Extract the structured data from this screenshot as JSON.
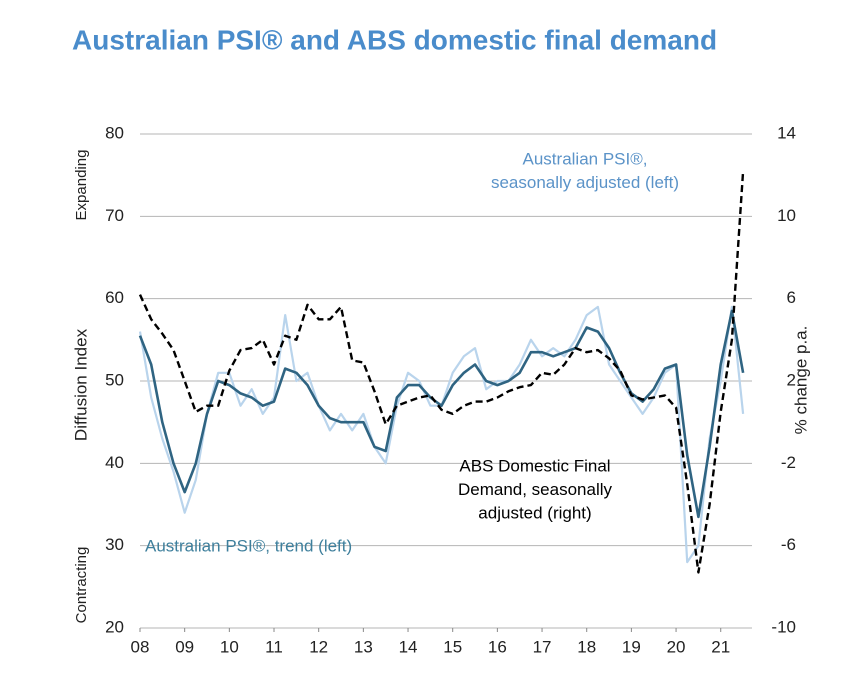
{
  "chart_data": {
    "type": "line",
    "title": "Australian PSI® and ABS domestic final demand",
    "ylabel": "Diffusion Index",
    "y2label": "% change p.a.",
    "ytop_label": "Expanding",
    "ybottom_label": "Contracting",
    "xlim": [
      2008,
      2021.7
    ],
    "xticks": [
      {
        "value": 2008,
        "label": "08"
      },
      {
        "value": 2009,
        "label": "09"
      },
      {
        "value": 2010,
        "label": "10"
      },
      {
        "value": 2011,
        "label": "11"
      },
      {
        "value": 2012,
        "label": "12"
      },
      {
        "value": 2013,
        "label": "13"
      },
      {
        "value": 2014,
        "label": "14"
      },
      {
        "value": 2015,
        "label": "15"
      },
      {
        "value": 2016,
        "label": "16"
      },
      {
        "value": 2017,
        "label": "17"
      },
      {
        "value": 2018,
        "label": "18"
      },
      {
        "value": 2019,
        "label": "19"
      },
      {
        "value": 2020,
        "label": "20"
      },
      {
        "value": 2021,
        "label": "21"
      }
    ],
    "ylim": [
      20,
      80
    ],
    "yticks": [
      20,
      30,
      40,
      50,
      60,
      70,
      80
    ],
    "y2lim": [
      -10,
      14
    ],
    "y2ticks": [
      -10,
      -6,
      -2,
      2,
      6,
      10,
      14
    ],
    "grid": true,
    "x": [
      2008,
      2008.25,
      2008.5,
      2008.75,
      2009,
      2009.25,
      2009.5,
      2009.75,
      2010,
      2010.25,
      2010.5,
      2010.75,
      2011,
      2011.25,
      2011.5,
      2011.75,
      2012,
      2012.25,
      2012.5,
      2012.75,
      2013,
      2013.25,
      2013.5,
      2013.75,
      2014,
      2014.25,
      2014.5,
      2014.75,
      2015,
      2015.25,
      2015.5,
      2015.75,
      2016,
      2016.25,
      2016.5,
      2016.75,
      2017,
      2017.25,
      2017.5,
      2017.75,
      2018,
      2018.25,
      2018.5,
      2018.75,
      2019,
      2019.25,
      2019.5,
      2019.75,
      2020,
      2020.25,
      2020.5,
      2020.75,
      2021,
      2021.25,
      2021.5
    ],
    "series": [
      {
        "name": "Australian PSI®, seasonally adjusted (left)",
        "color": "#b9d4ec",
        "width": 2.2,
        "dash": false,
        "axis": "y",
        "values": [
          56,
          48,
          43,
          39,
          34,
          38,
          46,
          51,
          51,
          47,
          49,
          46,
          48,
          58,
          50,
          51,
          47,
          44,
          46,
          44,
          46,
          42,
          40,
          47,
          51,
          50,
          47,
          47,
          51,
          53,
          54,
          49,
          50,
          50,
          52,
          55,
          53,
          54,
          53,
          55,
          58,
          59,
          52,
          50,
          48,
          46,
          48,
          51,
          52,
          28,
          30,
          43,
          50,
          59,
          46
        ]
      },
      {
        "name": "Australian PSI®, trend (left)",
        "color": "#2f6482",
        "width": 2.6,
        "dash": false,
        "axis": "y",
        "values": [
          55.5,
          52,
          45,
          40,
          36.5,
          40,
          46,
          50,
          49.5,
          48.5,
          48,
          47,
          47.5,
          51.5,
          51,
          49.5,
          47,
          45.5,
          45,
          45,
          45,
          42,
          41.5,
          48,
          49.5,
          49.5,
          48,
          47,
          49.5,
          51,
          52,
          50,
          49.5,
          50,
          51,
          53.5,
          53.5,
          53,
          53.5,
          54,
          56.5,
          56,
          54,
          51,
          48.5,
          47.5,
          49,
          51.5,
          52,
          41,
          33.5,
          42,
          52,
          58.5,
          51
        ]
      },
      {
        "name": "ABS Domestic Final Demand, seasonally adjusted (right)",
        "color": "#000000",
        "width": 2.4,
        "dash": true,
        "axis": "y2",
        "values": [
          6.2,
          5,
          4.3,
          3.5,
          2,
          0.5,
          0.8,
          0.8,
          2.5,
          3.5,
          3.6,
          4,
          2.8,
          4.2,
          4,
          5.7,
          5,
          5,
          5.6,
          3,
          2.9,
          1.5,
          -0.1,
          0.8,
          1,
          1.2,
          1.3,
          0.6,
          0.4,
          0.8,
          1,
          1,
          1.2,
          1.5,
          1.7,
          1.8,
          2.4,
          2.3,
          2.8,
          3.6,
          3.4,
          3.5,
          3.1,
          2.5,
          1.3,
          1.1,
          1.2,
          1.3,
          0.7,
          -3,
          -7.3,
          -4,
          0.5,
          4,
          12.2
        ]
      }
    ],
    "annotations": [
      {
        "lines": [
          "Australian PSI®,",
          "seasonally adjusted (left)"
        ],
        "color": "#5b93c8"
      },
      {
        "lines": [
          "ABS Domestic Final",
          "Demand, seasonally",
          "adjusted (right)"
        ],
        "color": "#000000"
      },
      {
        "lines": [
          "Australian PSI®, trend (left)"
        ],
        "color": "#3e7f9c"
      }
    ]
  }
}
